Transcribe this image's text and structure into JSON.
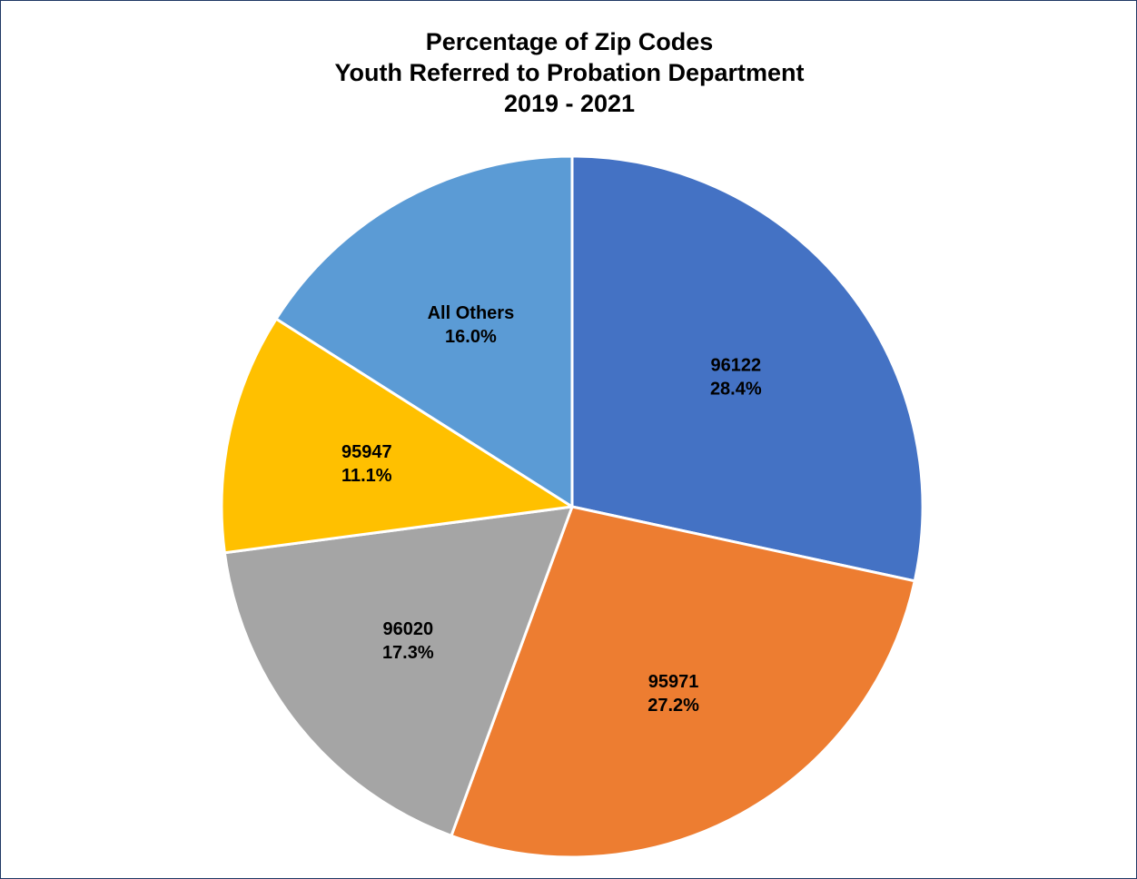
{
  "chart_data": {
    "type": "pie",
    "title_lines": [
      "Percentage of Zip Codes",
      "Youth Referred to Probation Department",
      "2019 - 2021"
    ],
    "slices": [
      {
        "label": "96122",
        "value": 28.4,
        "display": "28.4%",
        "color": "#4472c4"
      },
      {
        "label": "95971",
        "value": 27.2,
        "display": "27.2%",
        "color": "#ed7d31"
      },
      {
        "label": "96020",
        "value": 17.3,
        "display": "17.3%",
        "color": "#a5a5a5"
      },
      {
        "label": "95947",
        "value": 11.1,
        "display": "11.1%",
        "color": "#ffc000"
      },
      {
        "label": "All Others",
        "value": 16.0,
        "display": "16.0%",
        "color": "#5b9bd5"
      }
    ],
    "start": "top",
    "direction": "clockwise",
    "legend": "none"
  }
}
